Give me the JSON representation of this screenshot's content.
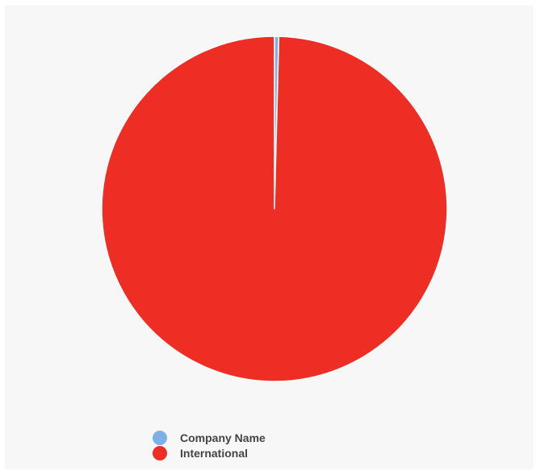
{
  "chart_data": {
    "type": "pie",
    "title": "",
    "legend_position": "bottom",
    "slices": [
      {
        "label": "Company Name",
        "value": 0.4,
        "color": "#7cb1e8"
      },
      {
        "label": "International",
        "value": 99.6,
        "color": "#ee2e24"
      }
    ],
    "legend": [
      {
        "label": "Company Name",
        "color": "#7cb1e8"
      },
      {
        "label": "International",
        "color": "#ee2e24"
      }
    ]
  }
}
